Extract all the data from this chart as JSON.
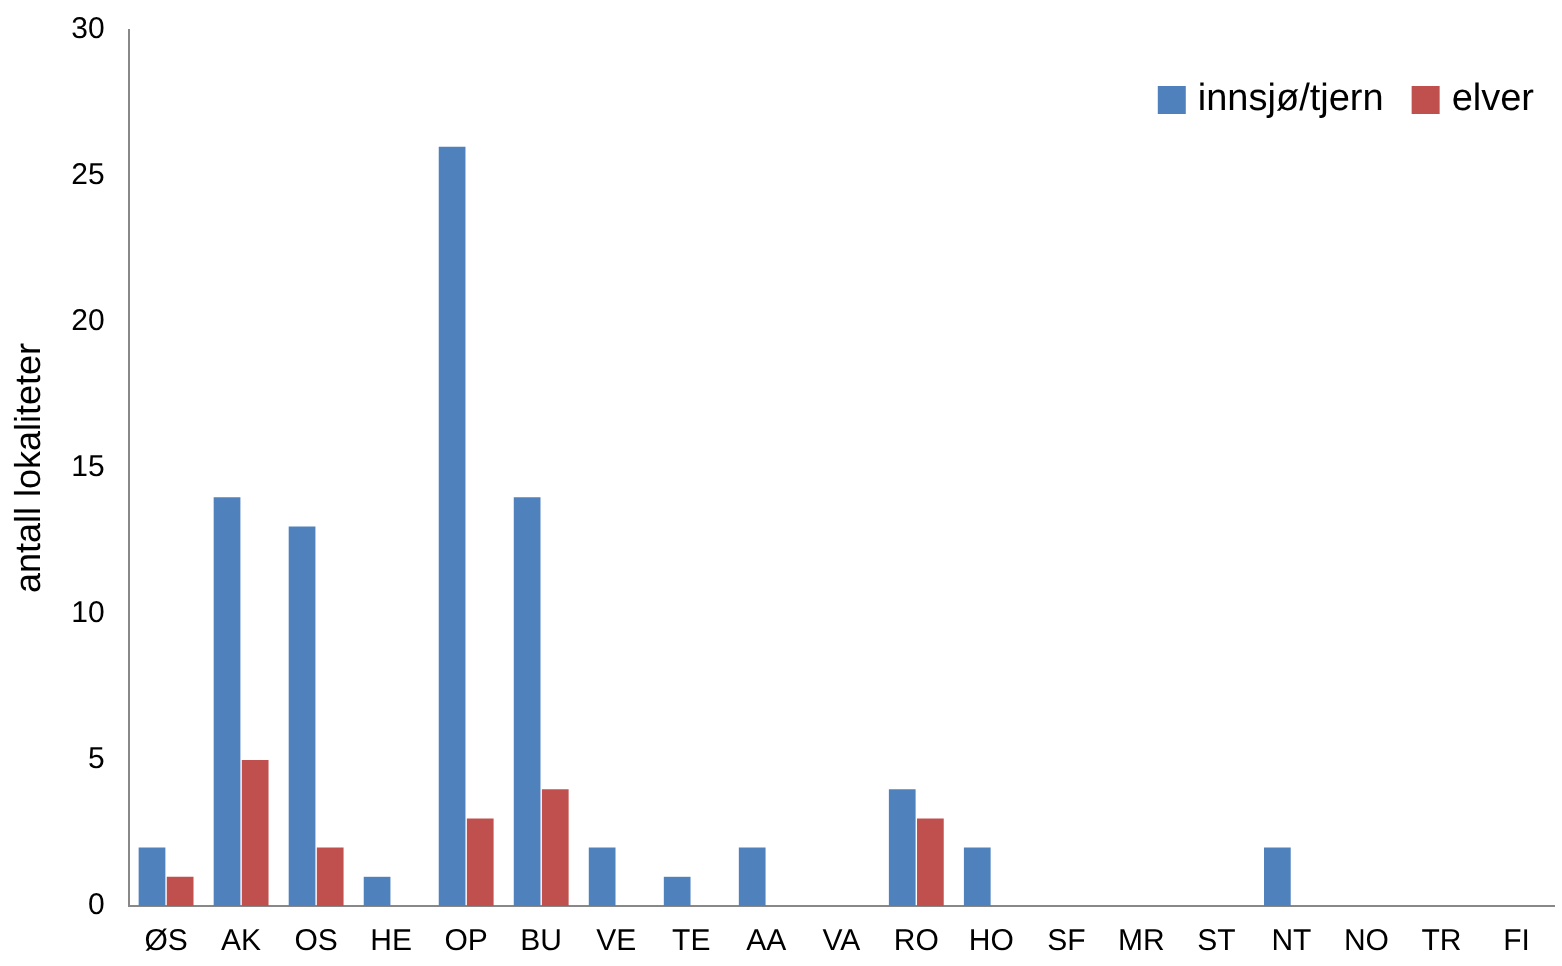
{
  "chart_data": {
    "type": "bar",
    "ylabel": "antall lokaliteter",
    "categories": [
      "ØS",
      "AK",
      "OS",
      "HE",
      "OP",
      "BU",
      "VE",
      "TE",
      "AA",
      "VA",
      "RO",
      "HO",
      "SF",
      "MR",
      "ST",
      "NT",
      "NO",
      "TR",
      "FI"
    ],
    "series": [
      {
        "name": "innsjø/tjern",
        "color": "#4f81bd",
        "values": [
          2,
          14,
          13,
          1,
          26,
          14,
          2,
          1,
          2,
          0,
          4,
          2,
          0,
          0,
          0,
          2,
          0,
          0,
          0
        ]
      },
      {
        "name": "elver",
        "color": "#c0504d",
        "values": [
          1,
          5,
          2,
          0,
          3,
          4,
          0,
          0,
          0,
          0,
          3,
          0,
          0,
          0,
          0,
          0,
          0,
          0,
          0
        ]
      }
    ],
    "ylim": [
      0,
      30
    ],
    "yticks": [
      0,
      5,
      10,
      15,
      20,
      25,
      30
    ],
    "grid": false,
    "legend": "top right"
  }
}
